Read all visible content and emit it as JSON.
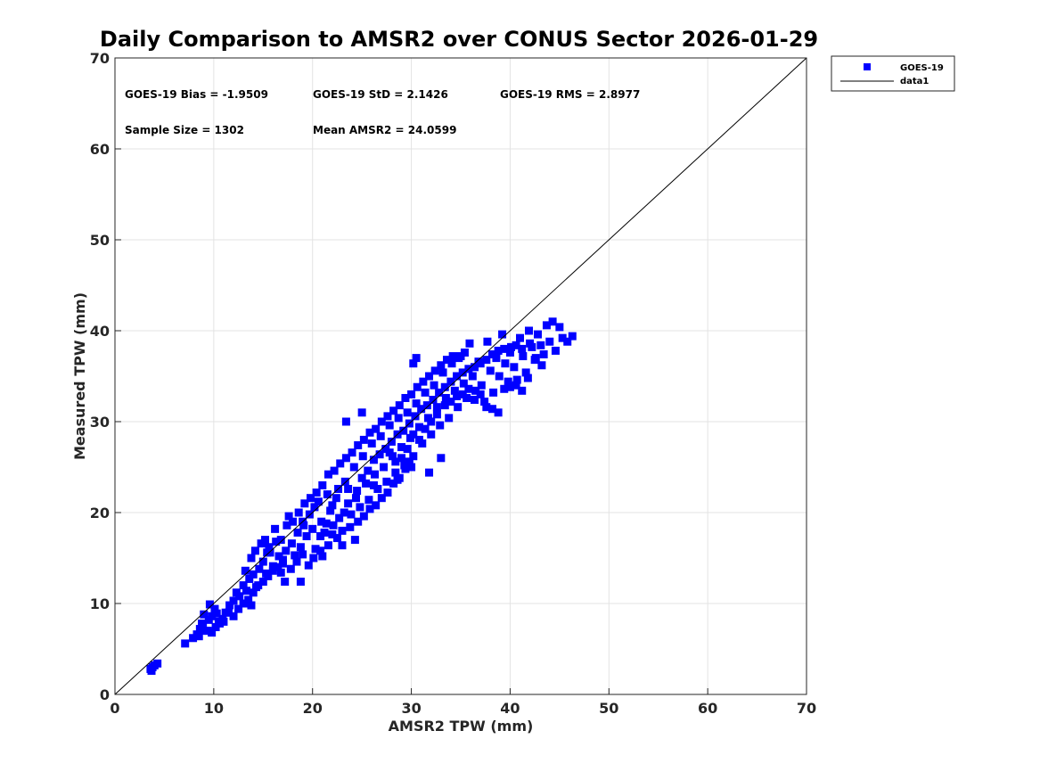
{
  "chart_data": {
    "type": "scatter",
    "title": "Daily Comparison to AMSR2 over CONUS Sector 2026-01-29",
    "xlabel": "AMSR2 TPW (mm)",
    "ylabel": "Measured TPW (mm)",
    "xlim": [
      0,
      70
    ],
    "ylim": [
      0,
      70
    ],
    "xticks": [
      "0",
      "10",
      "20",
      "30",
      "40",
      "50",
      "60",
      "70"
    ],
    "yticks": [
      "0",
      "10",
      "20",
      "30",
      "40",
      "50",
      "60",
      "70"
    ],
    "grid": true,
    "legend_position": "outside-top-right",
    "legend": [
      {
        "label": "GOES-19",
        "marker": "square",
        "color": "#0000ff"
      },
      {
        "label": "data1",
        "marker": "line",
        "color": "#000000"
      }
    ],
    "annotations": {
      "bias": "GOES-19 Bias = -1.9509",
      "std": "GOES-19 StD = 2.1426",
      "rms": "GOES-19 RMS = 2.8977",
      "sample_size": "Sample Size = 1302",
      "mean": "Mean AMSR2 = 24.0599"
    },
    "series": [
      {
        "name": "GOES-19",
        "color": "#0000ff",
        "marker": "square",
        "points": [
          [
            3.6,
            2.8
          ],
          [
            3.8,
            3.0
          ],
          [
            4.0,
            3.2
          ],
          [
            4.3,
            3.4
          ],
          [
            3.7,
            2.6
          ],
          [
            7.1,
            5.6
          ],
          [
            7.9,
            6.2
          ],
          [
            8.3,
            6.6
          ],
          [
            8.6,
            7.2
          ],
          [
            8.9,
            7.5
          ],
          [
            9.2,
            7.0
          ],
          [
            9.5,
            8.2
          ],
          [
            9.8,
            8.6
          ],
          [
            10.1,
            9.4
          ],
          [
            10.3,
            8.9
          ],
          [
            9.6,
            9.9
          ],
          [
            10.5,
            8.0
          ],
          [
            10.9,
            8.3
          ],
          [
            11.2,
            9.0
          ],
          [
            11.6,
            9.8
          ],
          [
            12.0,
            10.3
          ],
          [
            12.3,
            11.2
          ],
          [
            12.6,
            10.8
          ],
          [
            13.0,
            12.0
          ],
          [
            13.3,
            11.4
          ],
          [
            13.6,
            12.7
          ],
          [
            14.0,
            13.2
          ],
          [
            13.8,
            9.8
          ],
          [
            14.3,
            11.8
          ],
          [
            14.6,
            13.8
          ],
          [
            15.0,
            14.6
          ],
          [
            15.3,
            13.3
          ],
          [
            15.7,
            15.6
          ],
          [
            16.0,
            14.1
          ],
          [
            16.3,
            16.8
          ],
          [
            16.6,
            15.2
          ],
          [
            17.0,
            14.4
          ],
          [
            17.3,
            15.8
          ],
          [
            17.6,
            19.6
          ],
          [
            17.9,
            16.6
          ],
          [
            18.2,
            15.3
          ],
          [
            18.5,
            17.8
          ],
          [
            18.8,
            16.2
          ],
          [
            19.1,
            18.6
          ],
          [
            19.4,
            17.4
          ],
          [
            19.7,
            19.8
          ],
          [
            20.0,
            18.2
          ],
          [
            20.3,
            16.0
          ],
          [
            20.6,
            21.2
          ],
          [
            20.9,
            19.0
          ],
          [
            21.2,
            17.8
          ],
          [
            21.5,
            22.0
          ],
          [
            21.8,
            20.2
          ],
          [
            22.1,
            18.6
          ],
          [
            22.4,
            21.6
          ],
          [
            22.7,
            19.4
          ],
          [
            23.0,
            16.4
          ],
          [
            23.3,
            23.4
          ],
          [
            23.6,
            21.0
          ],
          [
            23.9,
            19.8
          ],
          [
            24.2,
            25.0
          ],
          [
            24.5,
            22.4
          ],
          [
            24.8,
            20.6
          ],
          [
            25.1,
            26.2
          ],
          [
            25.4,
            23.2
          ],
          [
            25.7,
            21.4
          ],
          [
            26.0,
            27.6
          ],
          [
            26.3,
            24.2
          ],
          [
            26.6,
            22.6
          ],
          [
            26.9,
            28.4
          ],
          [
            27.2,
            25.0
          ],
          [
            27.5,
            23.4
          ],
          [
            27.8,
            29.6
          ],
          [
            28.1,
            26.2
          ],
          [
            28.4,
            24.4
          ],
          [
            28.7,
            30.4
          ],
          [
            29.0,
            27.2
          ],
          [
            29.3,
            25.2
          ],
          [
            29.6,
            31.0
          ],
          [
            29.9,
            28.2
          ],
          [
            30.2,
            26.2
          ],
          [
            30.5,
            32.0
          ],
          [
            30.8,
            29.4
          ],
          [
            31.1,
            27.6
          ],
          [
            31.4,
            33.2
          ],
          [
            31.7,
            30.4
          ],
          [
            32.0,
            28.6
          ],
          [
            32.3,
            34.0
          ],
          [
            32.6,
            31.6
          ],
          [
            32.9,
            29.6
          ],
          [
            33.2,
            35.4
          ],
          [
            33.5,
            32.6
          ],
          [
            33.8,
            30.4
          ],
          [
            34.1,
            36.4
          ],
          [
            34.4,
            33.4
          ],
          [
            34.7,
            31.6
          ],
          [
            35.0,
            37.2
          ],
          [
            35.3,
            34.2
          ],
          [
            35.6,
            32.6
          ],
          [
            35.9,
            38.6
          ],
          [
            36.2,
            35.0
          ],
          [
            36.5,
            33.4
          ],
          [
            36.8,
            36.6
          ],
          [
            37.1,
            34.0
          ],
          [
            37.4,
            32.2
          ],
          [
            37.7,
            38.8
          ],
          [
            38.0,
            35.6
          ],
          [
            38.3,
            33.2
          ],
          [
            38.6,
            37.0
          ],
          [
            38.9,
            35.0
          ],
          [
            39.2,
            39.6
          ],
          [
            39.5,
            36.4
          ],
          [
            39.8,
            34.4
          ],
          [
            40.1,
            38.2
          ],
          [
            40.4,
            36.0
          ],
          [
            40.7,
            34.6
          ],
          [
            41.0,
            39.2
          ],
          [
            41.3,
            37.2
          ],
          [
            41.6,
            35.4
          ],
          [
            41.9,
            40.0
          ],
          [
            42.2,
            38.2
          ],
          [
            42.5,
            36.8
          ],
          [
            42.8,
            39.6
          ],
          [
            43.1,
            38.4
          ],
          [
            43.4,
            37.4
          ],
          [
            43.7,
            40.6
          ],
          [
            44.0,
            38.8
          ],
          [
            44.3,
            41.0
          ],
          [
            44.6,
            37.8
          ],
          [
            45.0,
            40.4
          ],
          [
            45.3,
            39.2
          ],
          [
            45.8,
            38.8
          ],
          [
            46.3,
            39.4
          ],
          [
            23.4,
            30.0
          ],
          [
            25.0,
            31.0
          ],
          [
            30.2,
            36.4
          ],
          [
            30.5,
            37.0
          ],
          [
            21.6,
            16.4
          ],
          [
            24.3,
            17.0
          ],
          [
            26.2,
            23.0
          ],
          [
            28.6,
            23.6
          ],
          [
            31.8,
            24.4
          ],
          [
            33.0,
            26.0
          ],
          [
            15.2,
            17.0
          ],
          [
            15.6,
            16.2
          ],
          [
            16.2,
            18.2
          ],
          [
            16.8,
            13.4
          ],
          [
            17.2,
            12.4
          ],
          [
            17.8,
            13.8
          ],
          [
            18.4,
            14.6
          ],
          [
            18.8,
            12.4
          ],
          [
            19.0,
            15.4
          ],
          [
            19.6,
            14.2
          ],
          [
            20.1,
            15.0
          ],
          [
            20.8,
            15.8
          ],
          [
            21.0,
            15.2
          ],
          [
            22.0,
            17.6
          ],
          [
            22.5,
            17.2
          ],
          [
            23.0,
            18.0
          ],
          [
            23.8,
            18.4
          ],
          [
            24.6,
            19.0
          ],
          [
            25.2,
            19.6
          ],
          [
            25.8,
            20.4
          ],
          [
            26.4,
            20.8
          ],
          [
            27.0,
            21.6
          ],
          [
            27.6,
            22.2
          ],
          [
            28.2,
            23.2
          ],
          [
            28.8,
            23.8
          ],
          [
            29.4,
            24.8
          ],
          [
            29.8,
            25.6
          ],
          [
            30.0,
            25.0
          ],
          [
            11.5,
            9.0
          ],
          [
            12.0,
            8.6
          ],
          [
            12.5,
            9.4
          ],
          [
            13.0,
            10.0
          ],
          [
            13.5,
            10.4
          ],
          [
            14.0,
            11.2
          ],
          [
            14.5,
            12.0
          ],
          [
            15.0,
            12.4
          ],
          [
            15.5,
            13.0
          ],
          [
            16.0,
            13.6
          ],
          [
            16.5,
            14.0
          ],
          [
            17.0,
            14.8
          ],
          [
            9.4,
            7.0
          ],
          [
            9.8,
            6.8
          ],
          [
            10.2,
            7.4
          ],
          [
            10.6,
            7.8
          ],
          [
            11.0,
            8.0
          ],
          [
            8.5,
            6.4
          ],
          [
            8.8,
            7.8
          ],
          [
            9.0,
            8.8
          ],
          [
            13.2,
            13.6
          ],
          [
            13.8,
            15.0
          ],
          [
            14.2,
            15.8
          ],
          [
            14.8,
            16.6
          ],
          [
            15.4,
            15.6
          ],
          [
            16.8,
            17.0
          ],
          [
            17.4,
            18.6
          ],
          [
            18.0,
            19.0
          ],
          [
            18.6,
            20.0
          ],
          [
            19.2,
            21.0
          ],
          [
            19.8,
            21.6
          ],
          [
            20.4,
            22.2
          ],
          [
            21.0,
            23.0
          ],
          [
            21.6,
            24.2
          ],
          [
            22.2,
            24.6
          ],
          [
            22.8,
            25.4
          ],
          [
            23.4,
            26.0
          ],
          [
            24.0,
            26.6
          ],
          [
            24.6,
            27.4
          ],
          [
            25.2,
            28.0
          ],
          [
            25.8,
            28.8
          ],
          [
            26.4,
            29.2
          ],
          [
            27.0,
            30.0
          ],
          [
            27.6,
            30.6
          ],
          [
            28.2,
            31.2
          ],
          [
            28.8,
            31.8
          ],
          [
            29.4,
            32.6
          ],
          [
            30.0,
            33.0
          ],
          [
            30.6,
            33.8
          ],
          [
            31.2,
            34.4
          ],
          [
            31.8,
            35.0
          ],
          [
            32.4,
            35.6
          ],
          [
            33.0,
            36.2
          ],
          [
            33.6,
            36.8
          ],
          [
            34.2,
            37.2
          ],
          [
            34.8,
            37.0
          ],
          [
            35.4,
            37.6
          ],
          [
            19.0,
            19.0
          ],
          [
            20.2,
            20.6
          ],
          [
            20.8,
            17.4
          ],
          [
            21.4,
            18.8
          ],
          [
            22.0,
            20.8
          ],
          [
            22.6,
            22.6
          ],
          [
            23.2,
            20.0
          ],
          [
            23.6,
            22.6
          ],
          [
            24.4,
            21.6
          ],
          [
            25.0,
            23.8
          ],
          [
            25.6,
            24.6
          ],
          [
            26.2,
            25.8
          ],
          [
            26.8,
            26.4
          ],
          [
            27.4,
            27.0
          ],
          [
            28.0,
            27.8
          ],
          [
            28.6,
            28.6
          ],
          [
            29.2,
            29.0
          ],
          [
            29.8,
            29.8
          ],
          [
            30.4,
            30.6
          ],
          [
            31.0,
            31.4
          ],
          [
            31.6,
            31.8
          ],
          [
            32.2,
            32.4
          ],
          [
            32.8,
            33.2
          ],
          [
            33.4,
            33.8
          ],
          [
            34.0,
            34.4
          ],
          [
            34.6,
            35.0
          ],
          [
            35.2,
            35.4
          ],
          [
            35.8,
            35.8
          ],
          [
            36.4,
            36.0
          ],
          [
            37.0,
            36.4
          ],
          [
            37.6,
            36.8
          ],
          [
            38.2,
            37.4
          ],
          [
            38.8,
            37.8
          ],
          [
            39.4,
            38.0
          ],
          [
            40.0,
            37.6
          ],
          [
            40.6,
            38.4
          ],
          [
            41.2,
            38.0
          ],
          [
            42.0,
            38.6
          ],
          [
            42.6,
            37.0
          ],
          [
            43.2,
            36.2
          ],
          [
            33.4,
            31.8
          ],
          [
            34.0,
            32.2
          ],
          [
            34.6,
            32.8
          ],
          [
            35.2,
            33.0
          ],
          [
            35.8,
            33.6
          ],
          [
            36.4,
            32.4
          ],
          [
            37.0,
            33.0
          ],
          [
            37.6,
            31.6
          ],
          [
            38.2,
            31.4
          ],
          [
            38.8,
            31.0
          ],
          [
            39.4,
            33.6
          ],
          [
            40.0,
            33.8
          ],
          [
            40.6,
            34.0
          ],
          [
            41.2,
            33.4
          ],
          [
            41.8,
            34.8
          ],
          [
            27.8,
            26.6
          ],
          [
            28.4,
            25.6
          ],
          [
            29.0,
            26.0
          ],
          [
            29.6,
            27.0
          ],
          [
            30.2,
            28.6
          ],
          [
            30.8,
            28.0
          ],
          [
            31.4,
            29.2
          ],
          [
            32.0,
            30.0
          ],
          [
            32.6,
            30.8
          ]
        ]
      },
      {
        "name": "data1",
        "color": "#000000",
        "marker": "line",
        "points": [
          [
            0,
            0
          ],
          [
            70,
            70
          ]
        ]
      }
    ]
  }
}
